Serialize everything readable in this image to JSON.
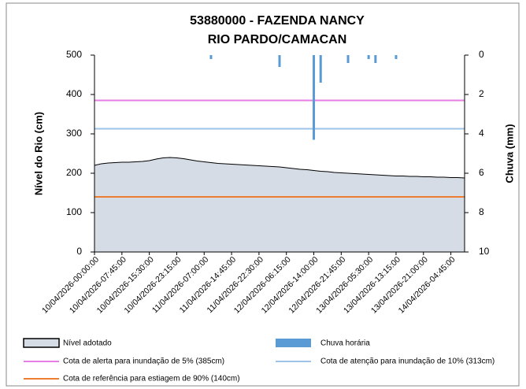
{
  "chart_data": {
    "type": "area-bar",
    "title": "53880000 - FAZENDA NANCY",
    "subtitle": "RIO PARDO/CAMACAN",
    "y_label": "Nível do Rio (cm)",
    "y2_label": "Chuva (mm)",
    "categories": [
      "10/04/2026-00:00:00",
      null,
      null,
      null,
      "10/04/2026-07:45:00",
      null,
      null,
      null,
      "10/04/2026-15:30:00",
      null,
      null,
      null,
      "10/04/2026-23:15:00",
      null,
      null,
      null,
      "11/04/2026-07:00:00",
      null,
      null,
      null,
      "11/04/2026-14:45:00",
      null,
      null,
      null,
      "11/04/2026-22:30:00",
      null,
      null,
      null,
      "12/04/2026-06:15:00",
      null,
      null,
      null,
      "12/04/2026-14:00:00",
      null,
      null,
      null,
      "12/04/2026-21:45:00",
      null,
      null,
      null,
      "13/04/2026-05:30:00",
      null,
      null,
      null,
      "13/04/2026-13:15:00",
      null,
      null,
      null,
      "13/04/2026-21:00:00",
      null,
      null,
      null,
      "14/04/2026-04:45:00",
      null,
      null
    ],
    "series": [
      {
        "name": "Nível adotado",
        "color": "#d6dce5",
        "values": [
          220,
          224,
          226,
          227,
          228,
          228,
          229,
          230,
          232,
          236,
          239,
          240,
          239,
          237,
          234,
          231,
          229,
          227,
          225,
          224,
          223,
          222,
          221,
          220,
          219,
          218,
          217,
          216,
          214,
          212,
          210,
          209,
          207,
          205,
          204,
          202,
          201,
          200,
          199,
          198,
          197,
          196,
          195,
          194,
          193,
          193,
          192,
          192,
          191,
          191,
          190,
          190,
          189,
          189,
          188
        ]
      },
      {
        "name": "Chuva horária",
        "color": "#5b9bd5",
        "axis": "y2",
        "values": [
          null,
          null,
          null,
          null,
          null,
          null,
          null,
          null,
          null,
          null,
          null,
          null,
          null,
          null,
          null,
          null,
          null,
          0.2,
          null,
          null,
          null,
          null,
          null,
          null,
          null,
          null,
          null,
          0.6,
          null,
          null,
          null,
          null,
          4.3,
          1.4,
          null,
          null,
          null,
          0.4,
          null,
          null,
          0.2,
          0.4,
          null,
          null,
          0.2,
          null,
          null,
          null,
          null,
          null,
          null,
          null,
          null,
          null,
          null
        ]
      }
    ],
    "lines": [
      {
        "name": "Cota de alerta para inundação de 5% (385cm)",
        "value": 385,
        "color": "#e67ee6"
      },
      {
        "name": "Cota de atenção para inundação de 10% (313cm)",
        "value": 313,
        "color": "#9dc3e6"
      },
      {
        "name": "Cota de referência para estiagem de 90% (140cm)",
        "value": 140,
        "color": "#ed7d31"
      }
    ],
    "ylim": [
      0,
      500
    ],
    "yticks": [
      0,
      100,
      200,
      300,
      400,
      500
    ],
    "y2lim": [
      0,
      10
    ],
    "y2ticks": [
      0,
      2,
      4,
      6,
      8,
      10
    ],
    "y2_inverted": true
  }
}
